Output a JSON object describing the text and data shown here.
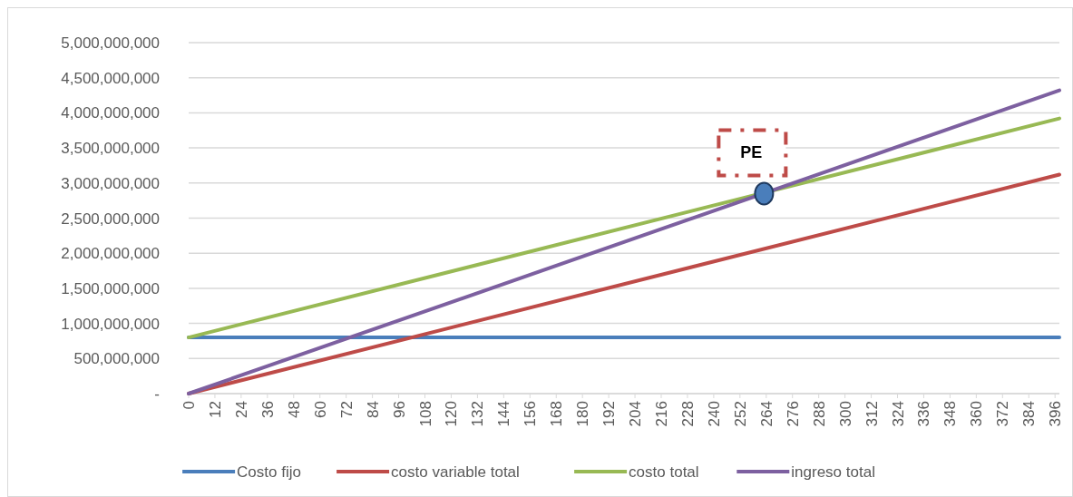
{
  "chart_data": {
    "type": "line",
    "xlim": [
      0,
      398
    ],
    "xticks": [
      0,
      12,
      24,
      36,
      48,
      60,
      72,
      84,
      96,
      108,
      120,
      132,
      144,
      156,
      168,
      180,
      192,
      204,
      216,
      228,
      240,
      252,
      264,
      276,
      288,
      300,
      312,
      324,
      336,
      348,
      360,
      372,
      384,
      396
    ],
    "ylim": [
      0,
      5000000000
    ],
    "yticks": [
      {
        "value": 0,
        "label": "-"
      },
      {
        "value": 500000000,
        "label": "500,000,000"
      },
      {
        "value": 1000000000,
        "label": "1,000,000,000"
      },
      {
        "value": 1500000000,
        "label": "1,500,000,000"
      },
      {
        "value": 2000000000,
        "label": "2,000,000,000"
      },
      {
        "value": 2500000000,
        "label": "2,500,000,000"
      },
      {
        "value": 3000000000,
        "label": "3,000,000,000"
      },
      {
        "value": 3500000000,
        "label": "3,500,000,000"
      },
      {
        "value": 4000000000,
        "label": "4,000,000,000"
      },
      {
        "value": 4500000000,
        "label": "4,500,000,000"
      },
      {
        "value": 5000000000,
        "label": "5,000,000,000"
      }
    ],
    "grid": "y",
    "legend": "bottom",
    "marker": "none",
    "series": [
      {
        "name": "Costo fijo",
        "color": "#4a7ebb",
        "x": [
          0,
          398
        ],
        "values": [
          800000000,
          800000000
        ]
      },
      {
        "name": "costo variable total",
        "color": "#be4b48",
        "x": [
          0,
          398
        ],
        "values": [
          0,
          3120000000
        ]
      },
      {
        "name": "costo total",
        "color": "#98b954",
        "x": [
          0,
          398
        ],
        "values": [
          800000000,
          3920000000
        ]
      },
      {
        "name": "ingreso total",
        "color": "#7d60a0",
        "x": [
          0,
          398
        ],
        "values": [
          0,
          4320000000
        ]
      },
      {
        "type": "scatter",
        "color": "#4a7ebb",
        "x": [
          263
        ],
        "values": [
          2850000000
        ],
        "marker": "circle"
      }
    ],
    "annotations": [
      {
        "text": "PE",
        "x": 263,
        "y": 2850000000
      }
    ]
  }
}
